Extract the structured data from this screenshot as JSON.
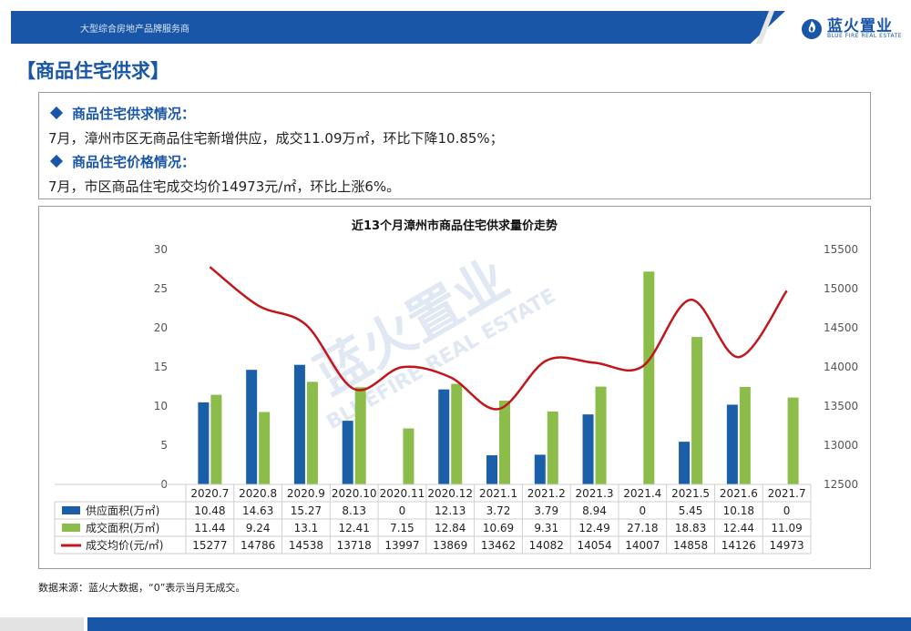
{
  "header": {
    "slogan": "大型综合房地产品牌服务商",
    "logo_cn": "蓝火置业",
    "logo_en": "BLUE FIRE REAL ESTATE",
    "logo_icon": "flame-logo-icon",
    "brand_color": "#1a56a8"
  },
  "section_title": "【商品住宅供求】",
  "summary": {
    "supply_heading": "商品住宅供求情况：",
    "supply_text": "7月，漳州市区无商品住宅新增供应，成交11.09万㎡，环比下降10.85%；",
    "price_heading": "商品住宅价格情况：",
    "price_text": "7月，市区商品住宅成交均价14973元/㎡，环比上涨6%。"
  },
  "watermark": {
    "cn": "蓝火置业",
    "en": "BLUEFIRE REAL ESTATE"
  },
  "chart_data": {
    "type": "bar",
    "title": "近13个月漳州市商品住宅供求量价走势",
    "categories": [
      "2020.7",
      "2020.8",
      "2020.9",
      "2020.10",
      "2020.11",
      "2020.12",
      "2021.1",
      "2021.2",
      "2021.3",
      "2021.4",
      "2021.5",
      "2021.6",
      "2021.7"
    ],
    "series": [
      {
        "name": "供应面积(万㎡)",
        "kind": "bar",
        "axis": "left",
        "color": "#1a5fa8",
        "values": [
          10.48,
          14.63,
          15.27,
          8.13,
          0,
          12.13,
          3.72,
          3.79,
          8.94,
          0,
          5.45,
          10.18,
          0
        ]
      },
      {
        "name": "成交面积(万㎡)",
        "kind": "bar",
        "axis": "left",
        "color": "#8cbc4a",
        "values": [
          11.44,
          9.24,
          13.1,
          12.41,
          7.15,
          12.84,
          10.69,
          9.31,
          12.49,
          27.18,
          18.83,
          12.44,
          11.09
        ]
      },
      {
        "name": "成交均价(元/㎡)",
        "kind": "line",
        "axis": "right",
        "color": "#c0161c",
        "values": [
          15277,
          14786,
          14538,
          13718,
          13997,
          13869,
          13462,
          14082,
          14054,
          14007,
          14858,
          14126,
          14973
        ]
      }
    ],
    "ylim_left": [
      0,
      30
    ],
    "yticks_left": [
      0,
      5,
      10,
      15,
      20,
      25,
      30
    ],
    "ylim_right": [
      12500,
      15500
    ],
    "yticks_right": [
      12500,
      13000,
      13500,
      14000,
      14500,
      15000,
      15500
    ],
    "grid": false,
    "legend": "data-table-below"
  },
  "source_note": "数据来源：蓝火大数据，“0”表示当月无成交。"
}
